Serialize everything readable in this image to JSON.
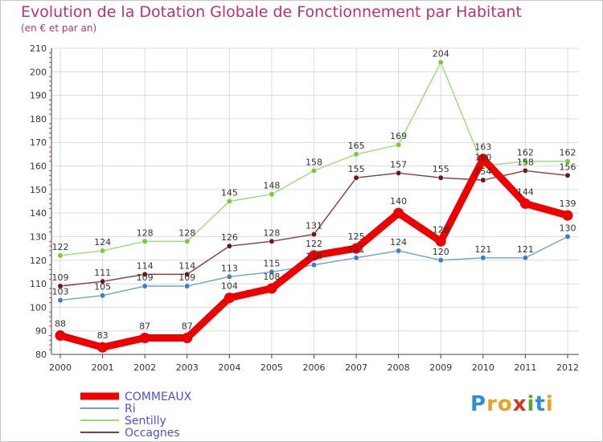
{
  "chart_data": {
    "type": "line",
    "title": "Evolution de la Dotation Globale de Fonctionnement par Habitant",
    "subtitle": "(en € et par an)",
    "xlabel": "",
    "ylabel": "",
    "ylim": [
      80,
      210
    ],
    "yticks": [
      80,
      90,
      100,
      110,
      120,
      130,
      140,
      150,
      160,
      170,
      180,
      190,
      200,
      210
    ],
    "x": [
      "2000",
      "2001",
      "2002",
      "2003",
      "2004",
      "2005",
      "2006",
      "2007",
      "2008",
      "2009",
      "2010",
      "2011",
      "2012"
    ],
    "series": [
      {
        "name": "COMMEAUX",
        "color": "#ee0000",
        "point_color": "#ee0000",
        "values": [
          88,
          83,
          87,
          87,
          104,
          108,
          122,
          125,
          140,
          128,
          163,
          144,
          139
        ]
      },
      {
        "name": "Ri",
        "color": "#6fa0d0",
        "point_color": "#3a7fc8",
        "values": [
          103,
          105,
          109,
          109,
          113,
          115,
          118,
          121,
          124,
          120,
          121,
          121,
          130
        ]
      },
      {
        "name": "Sentilly",
        "color": "#99dd77",
        "point_color": "#77cc33",
        "values": [
          122,
          124,
          128,
          128,
          145,
          148,
          158,
          165,
          169,
          204,
          160,
          162,
          162
        ]
      },
      {
        "name": "Occagnes",
        "color": "#8a3a3a",
        "point_color": "#6b1818",
        "values": [
          109,
          111,
          114,
          114,
          126,
          128,
          131,
          155,
          157,
          155,
          154,
          158,
          156
        ]
      }
    ],
    "grid": true,
    "legend_position": "bottom-left"
  },
  "logo": {
    "letters": [
      "P",
      "r",
      "o",
      "x",
      "i",
      "t",
      "i"
    ],
    "colors": [
      "#2d8fd8",
      "#e9a21d",
      "#e9a21d",
      "#d8361a",
      "#5aa72e",
      "#2d8fd8",
      "#e9a21d"
    ]
  }
}
